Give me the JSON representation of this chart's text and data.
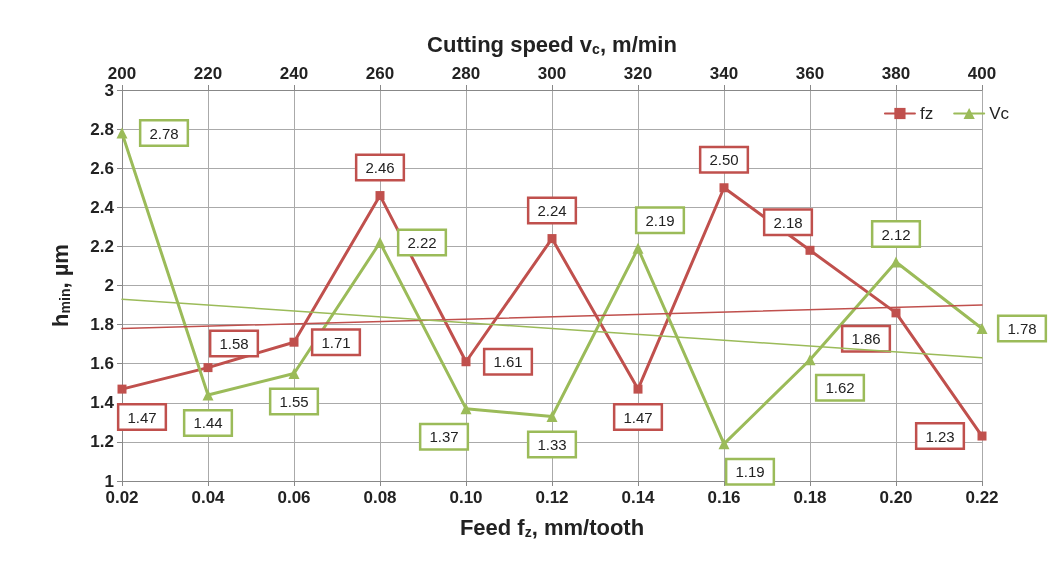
{
  "chart_data": {
    "type": "line",
    "xlabel": "Feed f$_{z}$, mm/tooth",
    "x2label": "Cutting speed v$_{c}$, m/min",
    "ylabel": "h$_{min}$, µm",
    "x": [
      0.02,
      0.04,
      0.06,
      0.08,
      0.1,
      0.12,
      0.14,
      0.16,
      0.18,
      0.2,
      0.22
    ],
    "xlim": [
      0.02,
      0.22
    ],
    "xticks": [
      0.02,
      0.04,
      0.06,
      0.08,
      {
        "value": 0.1,
        "label": "0.10"
      },
      0.12,
      0.14,
      0.16,
      0.18,
      {
        "value": 0.2,
        "label": "0.20"
      },
      0.22
    ],
    "x2lim": [
      200,
      400
    ],
    "x2ticks": [
      200,
      220,
      240,
      260,
      280,
      300,
      320,
      340,
      360,
      380,
      400
    ],
    "ylim": [
      1,
      3
    ],
    "yticks": [
      1,
      1.2,
      1.4,
      1.6,
      1.8,
      2,
      2.2,
      2.4,
      2.6,
      2.8,
      3
    ],
    "grid": true,
    "legend": "top right",
    "series": [
      {
        "name": "fz",
        "color": "#c0504d",
        "marker": "square",
        "values": [
          1.47,
          1.58,
          1.71,
          2.46,
          1.61,
          2.24,
          1.47,
          2.5,
          2.18,
          1.86,
          1.23
        ],
        "value_labels": [
          "1.47",
          "1.58",
          "1.71",
          "2.46",
          "1.61",
          "2.24",
          "1.47",
          "2.50",
          "2.18",
          "1.86",
          "1.23"
        ]
      },
      {
        "name": "Vc",
        "color": "#9bbb59",
        "marker": "triangle",
        "axis": "x2",
        "x": [
          200,
          220,
          240,
          260,
          280,
          300,
          320,
          340,
          360,
          380,
          400
        ],
        "values": [
          2.78,
          1.44,
          1.55,
          2.22,
          1.37,
          1.33,
          2.19,
          1.19,
          1.62,
          2.12,
          1.78
        ],
        "value_labels": [
          "2.78",
          "1.44",
          "1.55",
          "2.22",
          "1.37",
          "1.33",
          "2.19",
          "1.19",
          "1.62",
          "2.12",
          "1.78"
        ]
      },
      {
        "color": "#c0504d",
        "marker": "none",
        "x": [
          0.02,
          0.22
        ],
        "values": [
          1.78,
          1.9
        ]
      },
      {
        "color": "#9bbb59",
        "marker": "none",
        "axis": "x2",
        "x": [
          200,
          400
        ],
        "values": [
          1.93,
          1.63
        ]
      }
    ]
  }
}
